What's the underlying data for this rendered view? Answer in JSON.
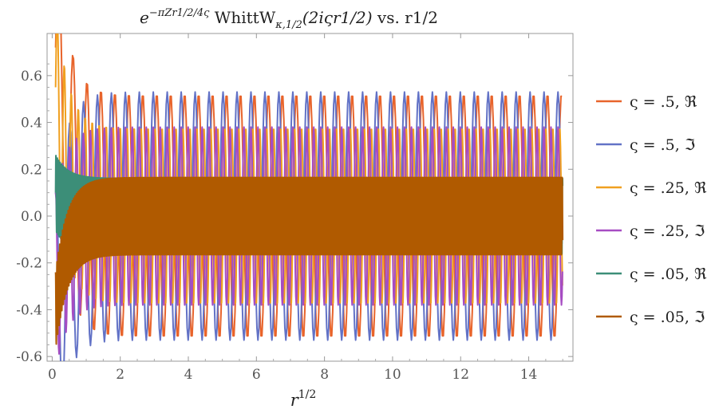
{
  "chart_data": {
    "type": "line",
    "title": "e^{-πZr^{1/2}/4ς} WhittW_{κ,1/2}(2iςr^{1/2}) vs. r^{1/2}",
    "title_parts": {
      "base": "e",
      "exponent": "−πZr1/2/4ς",
      "function": " WhittW",
      "subscript": "κ,1/2",
      "argument": "(2iςr1/2)",
      "tail": " vs. r1/2"
    },
    "xlabel": "r^{1/2}",
    "xlabel_parts": {
      "base": "r",
      "exponent": "1/2"
    },
    "ylabel": "",
    "xlim": [
      -0.15,
      15.3
    ],
    "ylim": [
      -0.62,
      0.78
    ],
    "x_ticks": [
      0,
      2,
      4,
      6,
      8,
      10,
      12,
      14
    ],
    "y_ticks": [
      -0.6,
      -0.4,
      -0.2,
      0.0,
      0.2,
      0.4,
      0.6
    ],
    "x_tick_labels": [
      "0",
      "2",
      "4",
      "6",
      "8",
      "10",
      "12",
      "14"
    ],
    "y_tick_labels": [
      "-0.6",
      "-0.4",
      "-0.2",
      "0.0",
      "0.2",
      "0.4",
      "0.6"
    ],
    "grid": false,
    "legend_position": "right",
    "x_range_plotted": [
      0.1,
      15
    ],
    "series": [
      {
        "name": "ς = .5, ℜ",
        "label_prefix": "ς = .5, ",
        "label_symbol": "ℜ",
        "color": "#E8642B",
        "x0": 0.1,
        "y_start": 0.72,
        "amplitude": 0.525,
        "offset": 0.0,
        "approx_period": 0.41,
        "phase": 0.0
      },
      {
        "name": "ς = .5, ℑ",
        "label_prefix": "ς = .5, ",
        "label_symbol": "ℑ",
        "color": "#6272C6",
        "x0": 0.1,
        "y_start": 0.1,
        "amplitude": 0.53,
        "offset": 0.0,
        "approx_period": 0.41,
        "phase": 1.5708
      },
      {
        "name": "ς = .25, ℜ",
        "label_prefix": "ς = .25, ",
        "label_symbol": "ℜ",
        "color": "#F0A020",
        "x0": 0.1,
        "y_start": 0.55,
        "amplitude": 0.38,
        "offset": 0.0,
        "approx_period": 0.205,
        "phase": 0.0
      },
      {
        "name": "ς = .25, ℑ",
        "label_prefix": "ς = .25, ",
        "label_symbol": "ℑ",
        "color": "#A64CC2",
        "x0": 0.1,
        "y_start": 0.1,
        "amplitude": 0.38,
        "offset": 0.0,
        "approx_period": 0.205,
        "phase": 1.5708
      },
      {
        "name": "ς = .05, ℜ",
        "label_prefix": "ς = .05, ",
        "label_symbol": "ℜ",
        "color": "#3C8E78",
        "x0": 0.1,
        "y_start": 0.1,
        "amplitude": 0.165,
        "offset": 0.0,
        "approx_period": 0.041,
        "phase": 0.0
      },
      {
        "name": "ς = .05, ℑ",
        "label_prefix": "ς = .05, ",
        "label_symbol": "ℑ",
        "color": "#B05A00",
        "x0": 0.1,
        "y_start": -0.24,
        "amplitude": 0.165,
        "offset": 0.0,
        "approx_period": 0.041,
        "phase": 1.5708
      }
    ]
  }
}
